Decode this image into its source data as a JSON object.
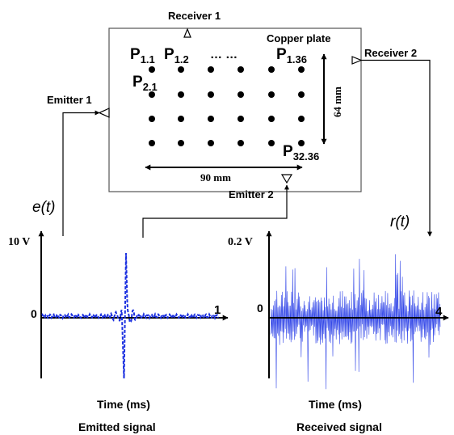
{
  "plate": {
    "name": "Copper plate",
    "labels": {
      "p11": {
        "main": "P",
        "sub": "1.1"
      },
      "p12": {
        "main": "P",
        "sub": "1.2"
      },
      "dots": "… …",
      "p136": {
        "main": "P",
        "sub": "1.36"
      },
      "p21": {
        "main": "P",
        "sub": "2.1"
      },
      "p3236": {
        "main": "P",
        "sub": "32.36"
      }
    },
    "width_label": "90 mm",
    "height_label": "64 mm"
  },
  "transducers": {
    "receiver1": "Receiver 1",
    "receiver2": "Receiver 2",
    "emitter1": "Emitter 1",
    "emitter2": "Emitter 2"
  },
  "signals": {
    "emitted": {
      "func": "e(t)",
      "ymax": "10 V",
      "zero": "0",
      "xend": "1",
      "xlabel": "Time (ms)",
      "title": "Emitted signal",
      "color": "#1a2fe0"
    },
    "received": {
      "func": "r(t)",
      "ymax": "0.2 V",
      "zero": "0",
      "xend": "4",
      "xlabel": "Time (ms)",
      "title": "Received signal",
      "color": "#3448e8"
    }
  }
}
